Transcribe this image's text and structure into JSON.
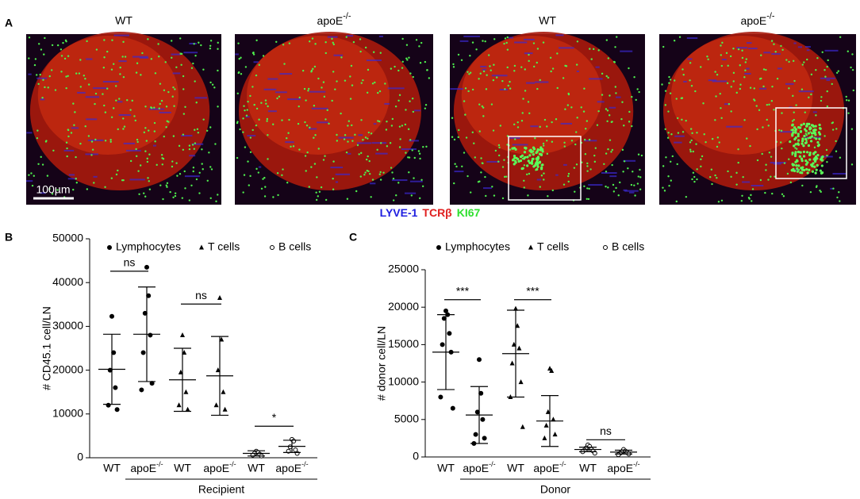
{
  "panel_a": {
    "letter": "A",
    "images": [
      {
        "title": "WT"
      },
      {
        "title": {
          "text": "apoE",
          "sup": "-/-"
        }
      },
      {
        "title": "WT"
      },
      {
        "title": {
          "text": "apoE",
          "sup": "-/-"
        }
      }
    ],
    "scale_bar": "100µm",
    "stain_legend": [
      {
        "label": "LYVE-1",
        "color": "#2020e0"
      },
      {
        "label": "TCRβ",
        "color": "#e02020"
      },
      {
        "label": "KI67",
        "color": "#30e030"
      }
    ]
  },
  "chart_data": [
    {
      "type": "dot",
      "letter": "B",
      "y_label": "# CD45.1 cell/LN",
      "group_label": "Recipient",
      "categories": [
        "WT",
        {
          "text": "apoE",
          "sup": "-/-"
        },
        "WT",
        {
          "text": "apoE",
          "sup": "-/-"
        },
        "WT",
        {
          "text": "apoE",
          "sup": "-/-"
        }
      ],
      "ylim": [
        0,
        50000
      ],
      "yticks": [
        0,
        10000,
        20000,
        30000,
        40000,
        50000
      ],
      "series": [
        {
          "name": "Lymphocytes",
          "marker": "filled-circle",
          "values": [
            [
              32300,
              24000,
              20000,
              16000,
              12000,
              11000
            ],
            [
              43500,
              37000,
              33000,
              28000,
              24000,
              17000,
              15500
            ],
            null,
            null,
            null,
            null
          ]
        },
        {
          "name": "T cells",
          "marker": "triangle",
          "values": [
            null,
            null,
            [
              28000,
              24000,
              19500,
              15000,
              12000,
              11000
            ],
            [
              36500,
              27000,
              20000,
              15000,
              12000,
              11000
            ],
            null,
            null
          ]
        },
        {
          "name": "B cells",
          "marker": "open-circle",
          "values": [
            null,
            null,
            null,
            null,
            [
              1500,
              1200,
              1000,
              800,
              600,
              400
            ],
            [
              4200,
              3800,
              2500,
              1800,
              1500,
              1000
            ]
          ]
        }
      ],
      "means": [
        20200,
        28200,
        17800,
        18700,
        1000,
        2600
      ],
      "sds": [
        8000,
        10800,
        7200,
        9000,
        600,
        1400
      ],
      "annotations": [
        {
          "label": "ns",
          "from": 0,
          "to": 1,
          "y": 42600
        },
        {
          "label": "ns",
          "from": 2,
          "to": 3,
          "y": 35100
        },
        {
          "label": "*",
          "from": 4,
          "to": 5,
          "y": 7200
        }
      ]
    },
    {
      "type": "dot",
      "letter": "C",
      "y_label": "# donor cell/LN",
      "group_label": "Donor",
      "categories": [
        "WT",
        {
          "text": "apoE",
          "sup": "-/-"
        },
        "WT",
        {
          "text": "apoE",
          "sup": "-/-"
        },
        "WT",
        {
          "text": "apoE",
          "sup": "-/-"
        }
      ],
      "ylim": [
        0,
        25000
      ],
      "yticks": [
        0,
        5000,
        10000,
        15000,
        20000,
        25000
      ],
      "series": [
        {
          "name": "Lymphocytes",
          "marker": "filled-circle",
          "values": [
            [
              19500,
              19000,
              18500,
              16500,
              15000,
              14000,
              8000,
              6500
            ],
            [
              13000,
              8500,
              6000,
              5000,
              3000,
              2500,
              1800
            ],
            null,
            null,
            null,
            null
          ]
        },
        {
          "name": "T cells",
          "marker": "triangle",
          "values": [
            null,
            null,
            [
              19800,
              17500,
              15000,
              14500,
              12500,
              10000,
              8000,
              4000
            ],
            [
              11800,
              11500,
              6000,
              5000,
              4200,
              3000,
              2500
            ],
            null,
            null
          ]
        },
        {
          "name": "B cells",
          "marker": "open-circle",
          "values": [
            null,
            null,
            null,
            null,
            [
              1600,
              1400,
              1200,
              1000,
              900,
              800,
              700,
              500
            ],
            [
              1000,
              800,
              700,
              600,
              500,
              400,
              300
            ]
          ]
        }
      ],
      "means": [
        14000,
        5600,
        13800,
        4800,
        1000,
        650
      ],
      "sds": [
        5000,
        3800,
        5800,
        3400,
        300,
        250
      ],
      "annotations": [
        {
          "label": "***",
          "from": 0,
          "to": 1,
          "y": 21000
        },
        {
          "label": "***",
          "from": 2,
          "to": 3,
          "y": 21000
        },
        {
          "label": "ns",
          "from": 4,
          "to": 5,
          "y": 2300
        }
      ]
    }
  ]
}
